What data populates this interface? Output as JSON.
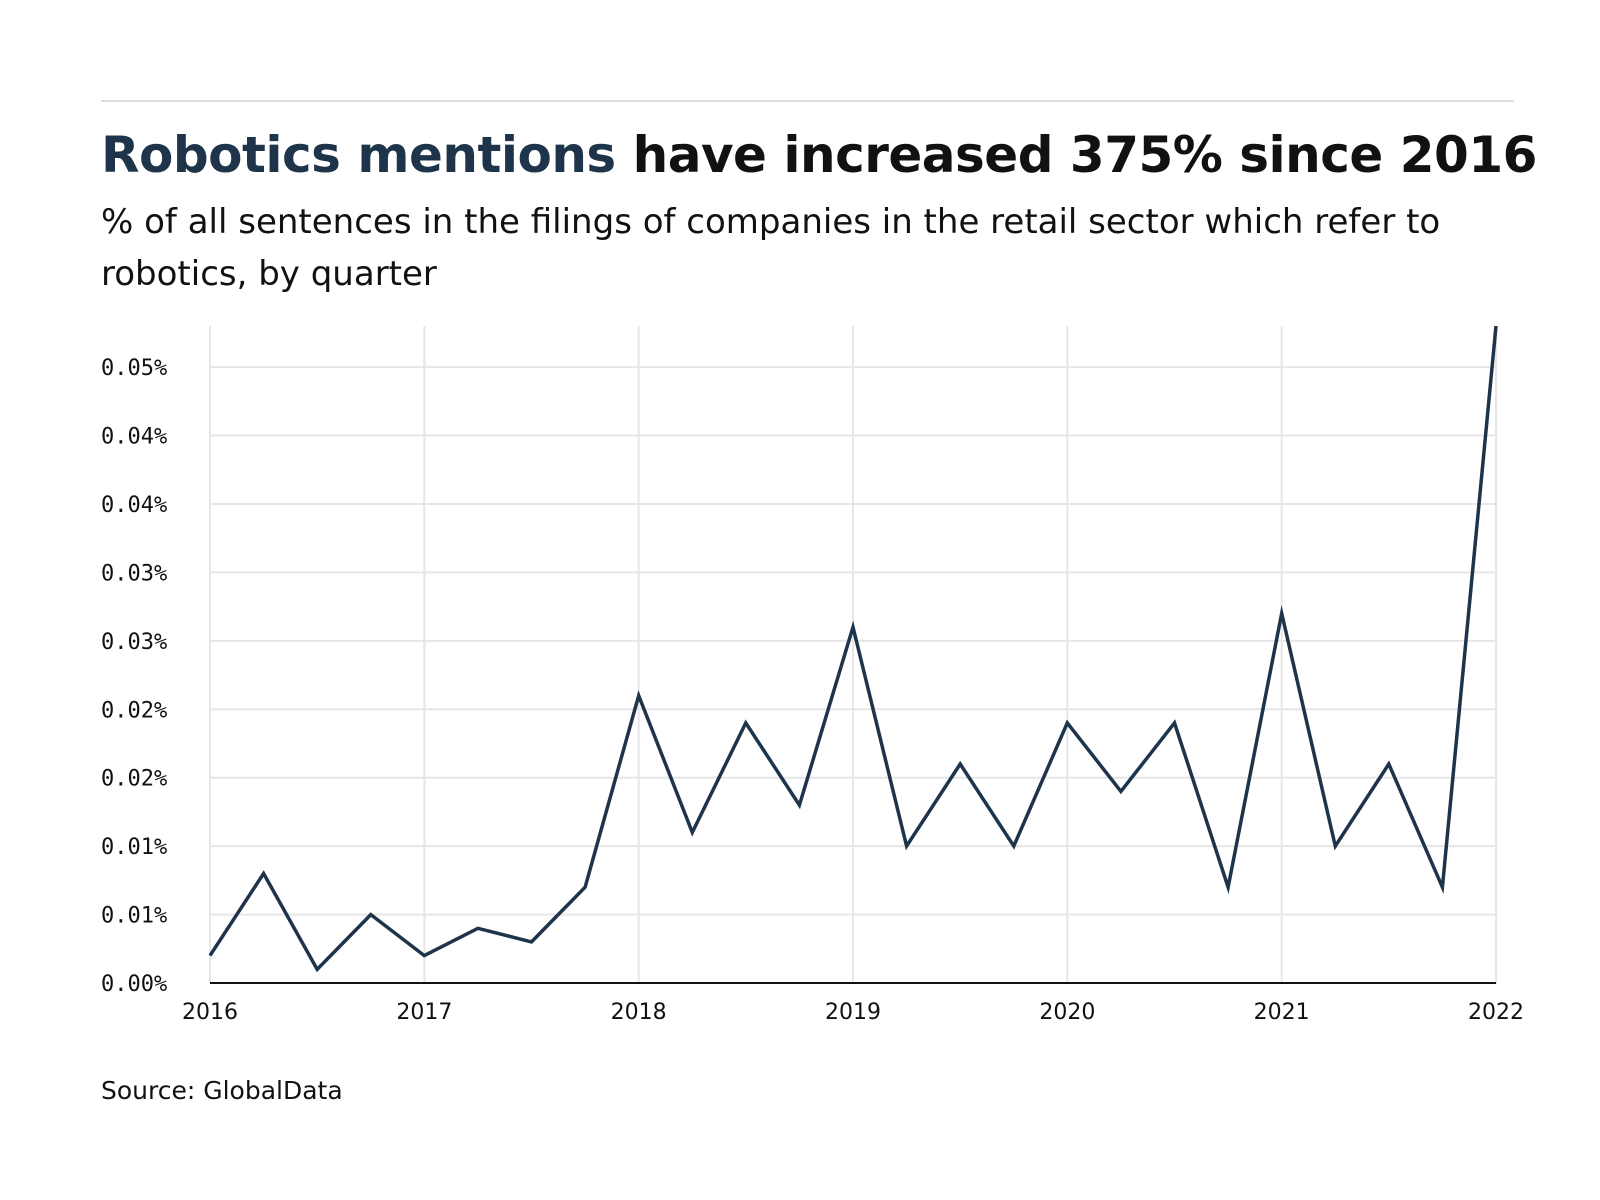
{
  "header": {
    "title_highlight": "Robotics mentions",
    "title_rest": " have increased 375% since 2016",
    "subtitle": "% of all sentences in the filings of companies in the retail sector which refer to robotics, by quarter"
  },
  "footer": {
    "source": "Source: GlobalData"
  },
  "colors": {
    "line": "#1e344a",
    "grid": "#e6e6e6",
    "axis": "#111111",
    "title_highlight": "#1e344a"
  },
  "chart_data": {
    "type": "line",
    "title": "Robotics mentions have increased 375% since 2016",
    "subtitle": "% of all sentences in the filings of companies in the retail sector which refer to robotics, by quarter",
    "xlabel": "",
    "ylabel": "",
    "x_ticks": [
      "2016",
      "2017",
      "2018",
      "2019",
      "2020",
      "2021",
      "2022"
    ],
    "y_ticks": [
      {
        "value": 0.0,
        "label": "0.00%"
      },
      {
        "value": 0.005,
        "label": "0.01%"
      },
      {
        "value": 0.01,
        "label": "0.01%"
      },
      {
        "value": 0.015,
        "label": "0.02%"
      },
      {
        "value": 0.02,
        "label": "0.02%"
      },
      {
        "value": 0.025,
        "label": "0.03%"
      },
      {
        "value": 0.03,
        "label": "0.03%"
      },
      {
        "value": 0.035,
        "label": "0.04%"
      },
      {
        "value": 0.04,
        "label": "0.04%"
      },
      {
        "value": 0.045,
        "label": "0.05%"
      }
    ],
    "xlim": [
      "2016 Q1",
      "2022 Q1"
    ],
    "ylim": [
      0,
      0.048
    ],
    "grid": true,
    "legend": "none",
    "series": [
      {
        "x": [
          "2016 Q1",
          "2016 Q2",
          "2016 Q3",
          "2016 Q4",
          "2017 Q1",
          "2017 Q2",
          "2017 Q3",
          "2017 Q4",
          "2018 Q1",
          "2018 Q2",
          "2018 Q3",
          "2018 Q4",
          "2019 Q1",
          "2019 Q2",
          "2019 Q3",
          "2019 Q4",
          "2020 Q1",
          "2020 Q2",
          "2020 Q3",
          "2020 Q4",
          "2021 Q1",
          "2021 Q2",
          "2021 Q3",
          "2021 Q4",
          "2022 Q1"
        ],
        "values": [
          0.002,
          0.008,
          0.001,
          0.005,
          0.002,
          0.004,
          0.003,
          0.007,
          0.021,
          0.011,
          0.019,
          0.013,
          0.026,
          0.01,
          0.016,
          0.01,
          0.019,
          0.014,
          0.019,
          0.007,
          0.027,
          0.01,
          0.016,
          0.007,
          0.048
        ]
      }
    ]
  }
}
